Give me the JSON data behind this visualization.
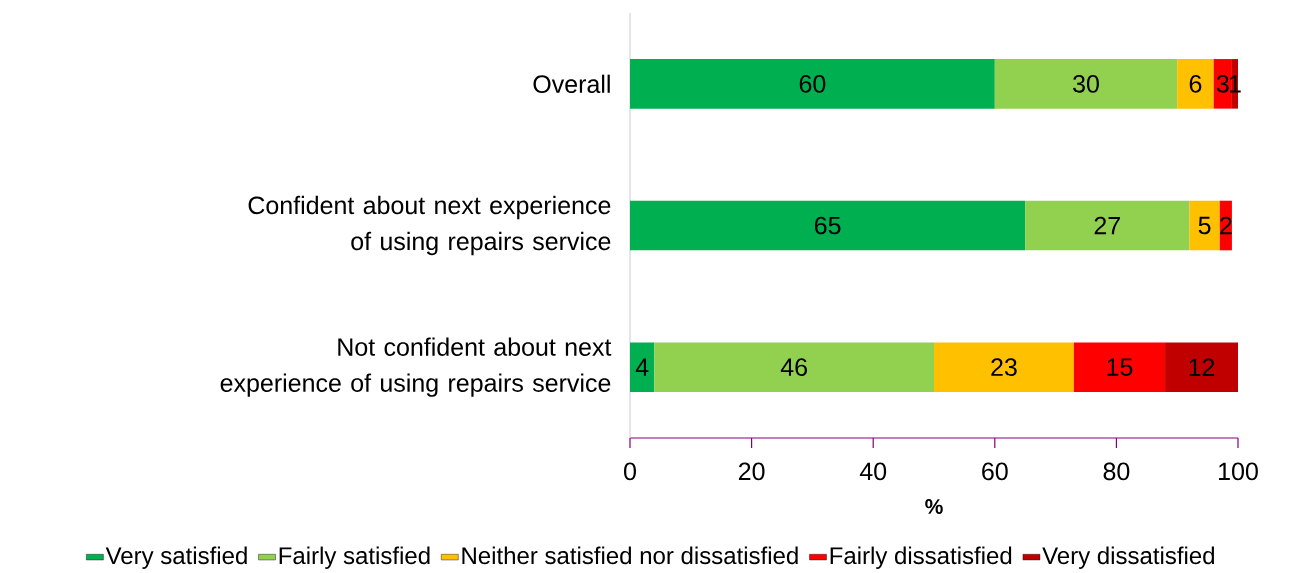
{
  "chart_data": {
    "type": "bar",
    "orientation": "horizontal",
    "stacked": true,
    "xlabel": "%",
    "categories": [
      "Overall",
      "Confident about next experience of using repairs service",
      "Not confident about next experience of using repairs service"
    ],
    "series": [
      {
        "name": "Very satisfied",
        "color": "#00b050",
        "values": [
          60,
          65,
          4
        ]
      },
      {
        "name": "Fairly satisfied",
        "color": "#92d050",
        "values": [
          30,
          27,
          46
        ]
      },
      {
        "name": "Neither satisfied nor dissatisfied",
        "color": "#ffc000",
        "values": [
          6,
          5,
          23
        ]
      },
      {
        "name": "Fairly dissatisfied",
        "color": "#ff0000",
        "values": [
          3,
          2,
          15
        ]
      },
      {
        "name": "Very dissatisfied",
        "color": "#c00000",
        "values": [
          1,
          null,
          12
        ]
      }
    ],
    "xlim": [
      0,
      100
    ],
    "xticks": [
      0,
      20,
      40,
      60,
      80,
      100
    ],
    "data_labels": true,
    "grid": false,
    "legend": "bottom"
  }
}
